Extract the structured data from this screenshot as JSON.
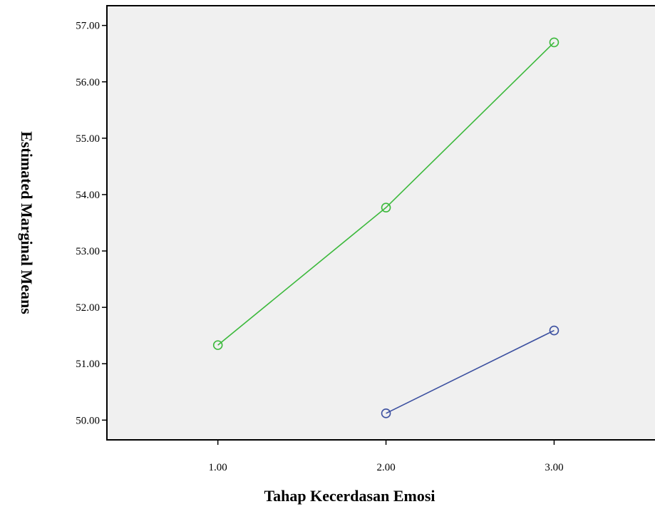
{
  "chart_data": {
    "type": "line",
    "title": "",
    "xlabel": "Tahap Kecerdasan Emosi",
    "ylabel": "Estimated Marginal Means",
    "xlim": [
      0.34,
      3.6
    ],
    "ylim": [
      49.65,
      57.35
    ],
    "x_ticks": [
      1.0,
      2.0,
      3.0
    ],
    "x_tick_labels": [
      "1.00",
      "2.00",
      "3.00"
    ],
    "y_ticks": [
      50,
      51,
      52,
      53,
      54,
      55,
      56,
      57
    ],
    "y_tick_labels": [
      "50.00",
      "51.00",
      "52.00",
      "53.00",
      "54.00",
      "55.00",
      "56.00",
      "57.00"
    ],
    "grid": false,
    "plot_background": "#f0f0f0",
    "series": [
      {
        "color": "#3cb93c",
        "marker": "open-circle",
        "x": [
          1.0,
          2.0,
          3.0
        ],
        "y": [
          51.33,
          53.77,
          56.7
        ]
      },
      {
        "color": "#3c50a0",
        "marker": "open-circle",
        "x": [
          2.0,
          3.0
        ],
        "y": [
          50.12,
          51.59
        ]
      }
    ]
  }
}
